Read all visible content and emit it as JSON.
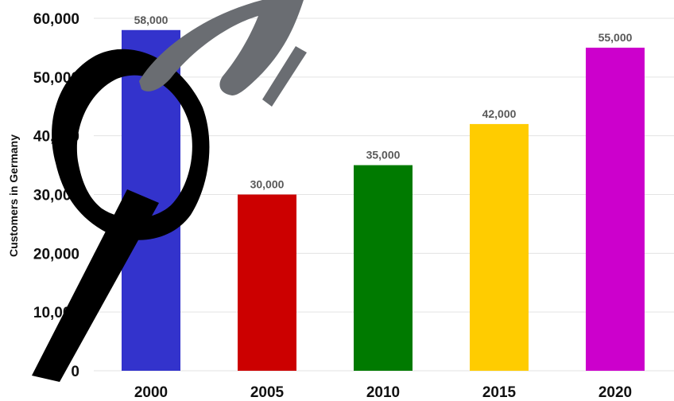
{
  "chart_data": {
    "type": "bar",
    "categories": [
      "2000",
      "2005",
      "2010",
      "2015",
      "2020"
    ],
    "values": [
      58000,
      30000,
      35000,
      42000,
      55000
    ],
    "data_labels": [
      "58,000",
      "30,000",
      "35,000",
      "42,000",
      "55,000"
    ],
    "colors": [
      "#3333cc",
      "#cc0000",
      "#007a00",
      "#ffcc00",
      "#cc00cc"
    ],
    "ylabel": "Customers in Germany",
    "ylim": [
      0,
      60000
    ],
    "yticks": [
      0,
      10000,
      20000,
      30000,
      40000,
      50000,
      60000
    ],
    "ytick_labels": [
      "0",
      "10,000",
      "20,000",
      "30,000",
      "40,000",
      "50,000",
      "60,000"
    ],
    "grid": true,
    "legend": "none"
  }
}
